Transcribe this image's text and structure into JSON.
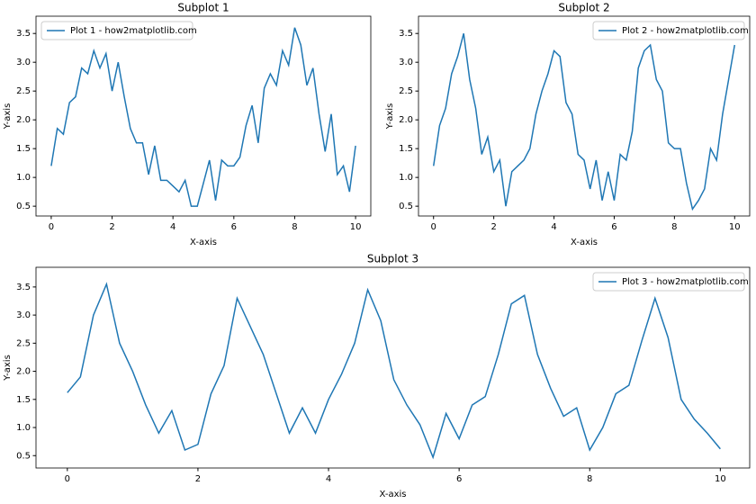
{
  "chart_data": [
    {
      "type": "line",
      "title": "Subplot 1",
      "xlabel": "X-axis",
      "ylabel": "Y-axis",
      "legend": "upper left",
      "x": [
        0,
        0.2,
        0.4,
        0.6,
        0.8,
        1,
        1.2,
        1.4,
        1.6,
        1.8,
        2,
        2.2,
        2.4,
        2.6,
        2.8,
        3,
        3.2,
        3.4,
        3.6,
        3.8,
        4,
        4.2,
        4.4,
        4.6,
        4.8,
        5,
        5.2,
        5.4,
        5.6,
        5.8,
        6,
        6.2,
        6.4,
        6.6,
        6.8,
        7,
        7.2,
        7.4,
        7.6,
        7.8,
        8,
        8.2,
        8.4,
        8.6,
        8.8,
        9,
        9.2,
        9.4,
        9.6,
        9.8,
        10
      ],
      "series": [
        {
          "name": "Plot 1 - how2matplotlib.com",
          "color": "#1f77b4",
          "values": [
            1.2,
            1.85,
            1.75,
            2.3,
            2.4,
            2.9,
            2.8,
            3.2,
            2.9,
            3.15,
            2.5,
            3.0,
            2.4,
            1.85,
            1.6,
            1.6,
            1.05,
            1.55,
            0.95,
            0.95,
            0.85,
            0.75,
            0.95,
            0.5,
            0.5,
            0.9,
            1.3,
            0.6,
            1.3,
            1.2,
            1.2,
            1.35,
            1.9,
            2.25,
            1.6,
            2.55,
            2.8,
            2.6,
            3.2,
            2.95,
            3.6,
            3.3,
            2.6,
            2.9,
            2.1,
            1.45,
            2.1,
            1.05,
            1.2,
            0.75,
            1.55
          ]
        }
      ],
      "xlim": [
        -0.5,
        10.5
      ],
      "ylim": [
        0.33,
        3.8
      ],
      "xticks": [
        0,
        2,
        4,
        6,
        8,
        10
      ],
      "yticks": [
        0.5,
        {
          "value": 1,
          "label": "1.0"
        },
        1.5,
        {
          "value": 2,
          "label": "2.0"
        },
        2.5,
        {
          "value": 3,
          "label": "3.0"
        },
        3.5
      ]
    },
    {
      "type": "line",
      "title": "Subplot 2",
      "xlabel": "X-axis",
      "ylabel": "Y-axis",
      "legend": "upper right",
      "x": [
        0,
        0.2,
        0.4,
        0.6,
        0.8,
        1,
        1.2,
        1.4,
        1.6,
        1.8,
        2,
        2.2,
        2.4,
        2.6,
        2.8,
        3,
        3.2,
        3.4,
        3.6,
        3.8,
        4,
        4.2,
        4.4,
        4.6,
        4.8,
        5,
        5.2,
        5.4,
        5.6,
        5.8,
        6,
        6.2,
        6.4,
        6.6,
        6.8,
        7,
        7.2,
        7.4,
        7.6,
        7.8,
        8,
        8.2,
        8.4,
        8.6,
        8.8,
        9,
        9.2,
        9.4,
        9.6,
        9.8,
        10
      ],
      "series": [
        {
          "name": "Plot 2 - how2matplotlib.com",
          "color": "#1f77b4",
          "values": [
            1.2,
            1.9,
            2.2,
            2.8,
            3.1,
            3.5,
            2.7,
            2.2,
            1.4,
            1.7,
            1.1,
            1.3,
            0.5,
            1.1,
            1.2,
            1.3,
            1.5,
            2.1,
            2.5,
            2.8,
            3.2,
            3.1,
            2.3,
            2.1,
            1.4,
            1.3,
            0.8,
            1.3,
            0.6,
            1.1,
            0.6,
            1.4,
            1.3,
            1.8,
            2.9,
            3.2,
            3.3,
            2.7,
            2.5,
            1.6,
            1.5,
            1.5,
            0.9,
            0.45,
            0.6,
            0.8,
            1.5,
            1.3,
            2.1,
            2.7,
            3.3
          ]
        }
      ],
      "xlim": [
        -0.5,
        10.5
      ],
      "ylim": [
        0.33,
        3.8
      ],
      "xticks": [
        0,
        2,
        4,
        6,
        8,
        10
      ],
      "yticks": [
        0.5,
        {
          "value": 1,
          "label": "1.0"
        },
        1.5,
        {
          "value": 2,
          "label": "2.0"
        },
        2.5,
        {
          "value": 3,
          "label": "3.0"
        },
        3.5
      ]
    },
    {
      "type": "line",
      "title": "Subplot 3",
      "xlabel": "X-axis",
      "ylabel": "Y-axis",
      "legend": "upper right",
      "x": [
        0,
        0.2,
        0.4,
        0.6,
        0.8,
        1,
        1.2,
        1.4,
        1.6,
        1.8,
        2,
        2.2,
        2.4,
        2.6,
        2.8,
        3,
        3.2,
        3.4,
        3.6,
        3.8,
        4,
        4.2,
        4.4,
        4.6,
        4.8,
        5,
        5.2,
        5.4,
        5.6,
        5.8,
        6,
        6.2,
        6.4,
        6.6,
        6.8,
        7,
        7.2,
        7.4,
        7.6,
        7.8,
        8,
        8.2,
        8.4,
        8.6,
        8.8,
        9,
        9.2,
        9.4,
        9.6,
        9.8,
        10
      ],
      "series": [
        {
          "name": "Plot 3 - how2matplotlib.com",
          "color": "#1f77b4",
          "values": [
            1.62,
            1.9,
            3.0,
            3.55,
            2.5,
            2.0,
            1.4,
            0.9,
            1.3,
            0.6,
            0.7,
            1.6,
            2.1,
            3.3,
            2.8,
            2.3,
            1.6,
            0.9,
            1.35,
            0.9,
            1.5,
            1.95,
            2.5,
            3.45,
            2.9,
            1.85,
            1.4,
            1.05,
            0.47,
            1.25,
            0.8,
            1.4,
            1.55,
            2.3,
            3.2,
            3.35,
            2.3,
            1.7,
            1.2,
            1.35,
            0.6,
            1.0,
            1.6,
            1.75,
            2.55,
            3.3,
            2.6,
            1.5,
            1.15,
            0.9,
            0.62
          ]
        }
      ],
      "xlim": [
        -0.48,
        10.45
      ],
      "ylim": [
        0.28,
        3.85
      ],
      "xticks": [
        0,
        2,
        4,
        6,
        8,
        10
      ],
      "yticks": [
        0.5,
        {
          "value": 1,
          "label": "1.0"
        },
        1.5,
        {
          "value": 2,
          "label": "2.0"
        },
        2.5,
        {
          "value": 3,
          "label": "3.0"
        },
        3.5
      ]
    }
  ]
}
